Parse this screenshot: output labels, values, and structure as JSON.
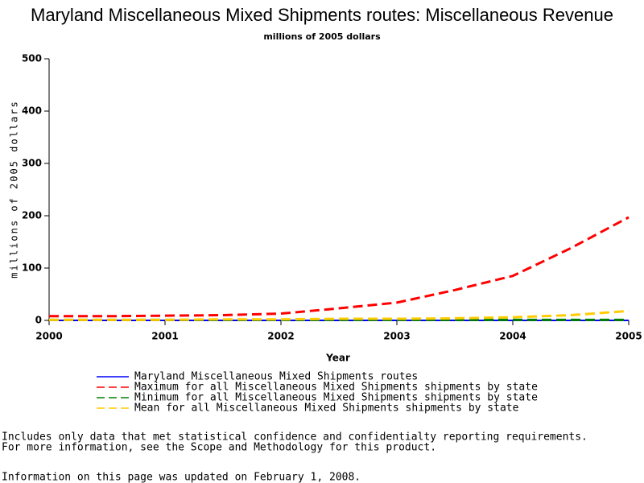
{
  "chart_data": {
    "type": "line",
    "title": "Maryland Miscellaneous Mixed Shipments routes: Miscellaneous Revenue",
    "subtitle": "millions of 2005 dollars",
    "x_label": "Year",
    "y_label": "millions of 2005 dollars",
    "x": [
      2000,
      2000.5,
      2001,
      2001.5,
      2002,
      2002.5,
      2003,
      2003.5,
      2004,
      2004.5,
      2005
    ],
    "series": [
      {
        "name": "Maryland Miscellaneous Mixed Shipments routes",
        "color": "#0000ff",
        "dashed": false,
        "values": [
          0,
          0,
          0,
          0,
          0,
          0,
          0,
          0,
          0,
          0,
          0
        ]
      },
      {
        "name": "Maximum for all Miscellaneous Mixed Shipments shipments by state",
        "color": "#ff0000",
        "dashed": true,
        "values": [
          8,
          8,
          9,
          10,
          13,
          23,
          34,
          58,
          85,
          138,
          197
        ]
      },
      {
        "name": "Minimum for all Miscellaneous Mixed Shipments shipments by state",
        "color": "#008000",
        "dashed": true,
        "values": [
          1,
          1,
          1,
          1,
          1,
          1,
          1,
          1,
          1,
          1,
          1
        ]
      },
      {
        "name": "Mean for all Miscellaneous Mixed Shipments shipments by state",
        "color": "#ffcc00",
        "dashed": true,
        "values": [
          1,
          1,
          1,
          2,
          2,
          3,
          3,
          4,
          6,
          10,
          18
        ]
      }
    ],
    "xlim": [
      2000,
      2005
    ],
    "xticks": [
      2000,
      2001,
      2002,
      2003,
      2004,
      2005
    ],
    "ylim": [
      0,
      500
    ],
    "yticks": [
      0,
      100,
      200,
      300,
      400,
      500
    ]
  },
  "notes": [
    "Includes only data that met statistical confidence and confidentialty reporting requirements.",
    "For more information, see the Scope and Methodology for this product.",
    "Information on this page was updated on February 1, 2008."
  ]
}
